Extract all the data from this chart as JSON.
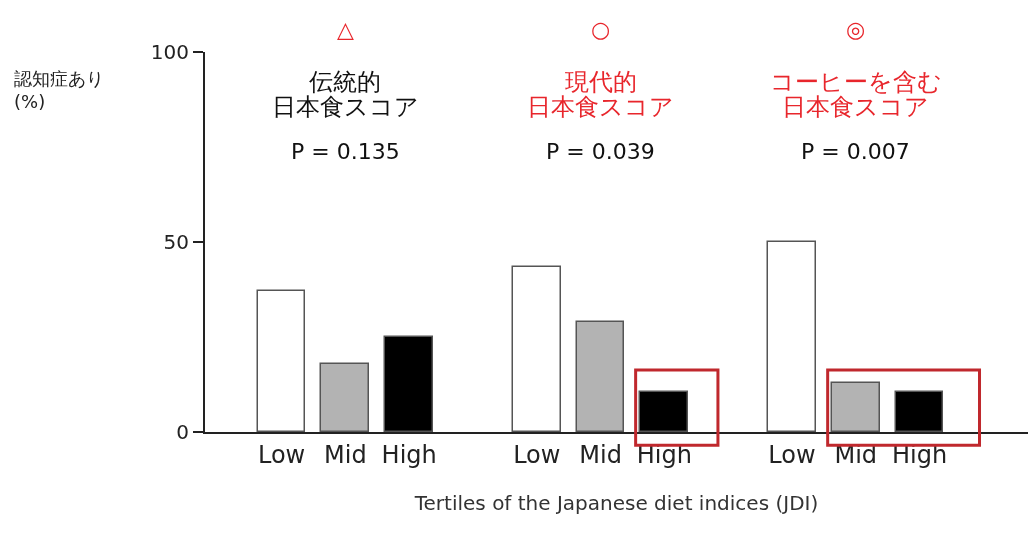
{
  "chart_data": {
    "type": "bar",
    "xlabel": "Tertiles of the Japanese diet indices (JDI)",
    "ylabel": "認知症あり\n(%)",
    "categories": [
      "Low",
      "Mid",
      "High",
      null,
      "Low",
      "Mid",
      "High",
      null,
      "Low",
      "Mid",
      "High"
    ],
    "values": [
      37,
      18,
      25,
      null,
      43.5,
      29,
      10.5,
      null,
      50,
      13,
      10.5
    ],
    "colors": [
      "#ffffff",
      "#b3b3b3",
      "#000000",
      "#ffffff",
      "#ffffff",
      "#b3b3b3",
      "#000000",
      "#ffffff",
      "#ffffff",
      "#b3b3b3",
      "#000000"
    ],
    "ylim": [
      0,
      100
    ],
    "yticks": [
      0,
      50,
      100
    ],
    "annotations": [
      "△",
      "伝統的",
      "日本食スコア",
      "P = 0.135",
      "○",
      "現代的",
      "日本食スコア",
      "P = 0.039",
      "◎",
      "コーヒーを含む",
      "日本食スコア",
      "P = 0.007"
    ]
  }
}
